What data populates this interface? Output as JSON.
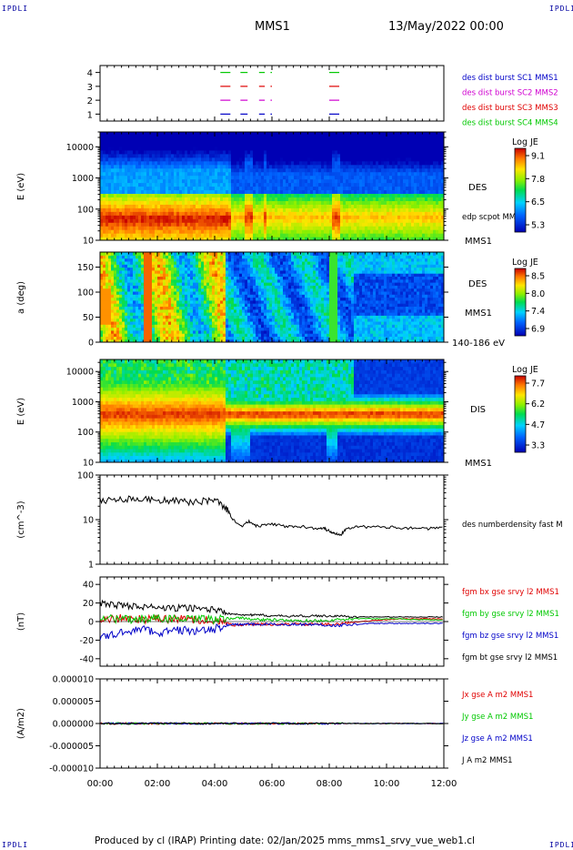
{
  "corner_labels": {
    "tl": "IPDLI",
    "tr": "IPDLI",
    "bl": "IPDLI",
    "br": "IPDLI"
  },
  "header": {
    "spacecraft": "MMS1",
    "datetime": "13/May/2022 00:00"
  },
  "footer": "Produced by cl (IRAP)   Printing date: 02/Jan/2025   mms_mms1_srvy_vue_web1.cl",
  "time_axis": {
    "ticks": [
      "00:00",
      "02:00",
      "04:00",
      "06:00",
      "08:00",
      "10:00",
      "12:00"
    ]
  },
  "colors": {
    "mms1": "#0000c8",
    "mms2": "#d000d0",
    "mms3": "#e00000",
    "mms4": "#00c800",
    "black": "#000000"
  },
  "chart_data": [
    {
      "type": "line",
      "name": "burst_availability",
      "ylim": [
        0.5,
        4.5
      ],
      "y_ticks": [
        "1",
        "2",
        "3",
        "4"
      ],
      "series": [
        {
          "name": "des dist burst SC1 MMS1",
          "level": 1,
          "color": "#0000c8"
        },
        {
          "name": "des dist burst SC2 MMS2",
          "level": 2,
          "color": "#d000d0"
        },
        {
          "name": "des dist burst SC3 MMS3",
          "level": 3,
          "color": "#e00000"
        },
        {
          "name": "des dist burst SC4 MMS4",
          "level": 4,
          "color": "#00c800"
        }
      ],
      "burst_intervals_hours": [
        [
          4.2,
          4.55
        ],
        [
          4.9,
          5.15
        ],
        [
          5.55,
          5.75
        ],
        [
          5.95,
          6.0
        ],
        [
          8.0,
          8.35
        ]
      ]
    },
    {
      "type": "heatmap",
      "name": "des_energy_spectrogram",
      "ylabel": "E (eV)",
      "y_scale": "log",
      "ylim": [
        10,
        30000
      ],
      "y_ticks": [
        "10",
        "100",
        "1000",
        "10000"
      ],
      "right_labels": [
        "DES",
        "edp scpot MMS1",
        "MMS1"
      ],
      "colorbar": {
        "title": "Log JE",
        "ticks": [
          "9.1",
          "7.8",
          "6.5",
          "5.3"
        ],
        "range": [
          5.3,
          9.1
        ]
      }
    },
    {
      "type": "heatmap",
      "name": "des_pitch_angle",
      "ylabel": "a (deg)",
      "ylim": [
        0,
        180
      ],
      "y_ticks": [
        "0",
        "50",
        "100",
        "150"
      ],
      "right_labels": [
        "DES",
        "MMS1",
        "140-186 eV"
      ],
      "colorbar": {
        "title": "Log JE",
        "ticks": [
          "8.5",
          "8.0",
          "7.4",
          "6.9"
        ],
        "range": [
          6.9,
          8.5
        ]
      }
    },
    {
      "type": "heatmap",
      "name": "dis_energy_spectrogram",
      "ylabel": "E (eV)",
      "y_scale": "log",
      "ylim": [
        10,
        25000
      ],
      "y_ticks": [
        "10",
        "100",
        "1000",
        "10000"
      ],
      "right_labels": [
        "DIS",
        "MMS1"
      ],
      "colorbar": {
        "title": "Log JE",
        "ticks": [
          "7.7",
          "6.2",
          "4.7",
          "3.3"
        ],
        "range": [
          3.3,
          7.7
        ]
      }
    },
    {
      "type": "line",
      "name": "des_numberdensity",
      "ylabel": "(cm^-3)",
      "y_scale": "log",
      "ylim": [
        1,
        100
      ],
      "y_ticks": [
        "1",
        "10",
        "100"
      ],
      "x_hours": [
        0,
        0.5,
        1,
        1.5,
        2,
        2.5,
        3,
        3.5,
        4,
        4.4,
        4.6,
        4.9,
        5.2,
        5.5,
        6,
        6.5,
        7,
        7.5,
        7.8,
        8.0,
        8.2,
        8.4,
        8.6,
        9,
        9.5,
        10,
        10.5,
        11,
        11.5,
        12
      ],
      "series": [
        {
          "name": "des numberdensity fast M",
          "color": "#000000",
          "values": [
            27,
            28,
            30,
            29,
            28,
            27,
            25,
            26,
            28,
            18,
            11,
            7,
            9,
            7,
            8,
            7,
            7,
            6.5,
            6.5,
            5.5,
            5,
            4.5,
            6.5,
            7,
            6.8,
            6.8,
            6.6,
            6.5,
            6.3,
            6.5
          ]
        }
      ]
    },
    {
      "type": "line",
      "name": "fgm_b_gse",
      "ylabel": "(nT)",
      "ylim": [
        -48,
        48
      ],
      "y_ticks": [
        "-40",
        "-20",
        "0",
        "20",
        "40"
      ],
      "x_hours": [
        0,
        0.5,
        1,
        1.5,
        2,
        2.5,
        3,
        3.5,
        4,
        4.4,
        4.8,
        5.2,
        5.6,
        6,
        6.5,
        7,
        7.5,
        8,
        8.4,
        8.8,
        9.5,
        10,
        10.5,
        11,
        11.5,
        12
      ],
      "series": [
        {
          "name": "fgm bx gse srvy l2 MMS1",
          "color": "#e00000",
          "values": [
            2,
            3,
            4,
            2,
            3,
            2,
            3,
            2,
            1,
            -2,
            -4,
            -3,
            -3,
            -3,
            -3,
            -3,
            -3,
            -3,
            -2,
            -1,
            1,
            2,
            3,
            3,
            3,
            3
          ]
        },
        {
          "name": "fgm by gse srvy l2 MMS1",
          "color": "#00c800",
          "values": [
            4,
            3,
            2,
            3,
            4,
            3,
            2,
            3,
            2,
            3,
            4,
            3,
            2,
            2,
            1,
            1,
            1,
            1,
            2,
            3,
            3,
            3,
            3,
            2,
            2,
            2
          ]
        },
        {
          "name": "fgm bz gse srvy l2 MMS1",
          "color": "#0000c8",
          "values": [
            -18,
            -14,
            -10,
            -8,
            -12,
            -10,
            -9,
            -11,
            -8,
            -4,
            -3,
            -3,
            -3,
            -3,
            -3,
            -3,
            -3,
            -4,
            -4,
            -3,
            -2,
            -2,
            -2,
            -2,
            -2,
            -2
          ]
        },
        {
          "name": "fgm bt gse srvy l2 MMS1",
          "color": "#000000",
          "values": [
            20,
            18,
            17,
            16,
            15,
            14,
            15,
            14,
            13,
            9,
            8,
            7,
            7,
            6,
            6,
            6,
            6,
            6,
            6,
            5,
            5,
            5,
            5,
            5,
            5,
            5
          ]
        }
      ]
    },
    {
      "type": "line",
      "name": "current_density",
      "ylabel": "(A/m2)",
      "ylim": [
        -1e-05,
        1e-05
      ],
      "y_ticks": [
        "-0.000010",
        "-0.000005",
        "0.000000",
        "0.000005",
        "0.000010"
      ],
      "x_hours": [
        0,
        2,
        4,
        6,
        8,
        10,
        12
      ],
      "series": [
        {
          "name": "Jx gse A m2 MMS1",
          "color": "#e00000",
          "values": [
            0,
            0,
            0,
            0,
            0,
            0,
            0
          ]
        },
        {
          "name": "Jy gse A m2 MMS1",
          "color": "#00c800",
          "values": [
            0,
            0,
            0,
            0,
            0,
            0,
            0
          ]
        },
        {
          "name": "Jz gse A m2 MMS1",
          "color": "#0000c8",
          "values": [
            0,
            0,
            0,
            0,
            0,
            0,
            0
          ]
        },
        {
          "name": "J A m2 MMS1",
          "color": "#000000",
          "values": [
            0,
            0,
            0,
            0,
            0,
            0,
            0
          ]
        }
      ]
    }
  ]
}
